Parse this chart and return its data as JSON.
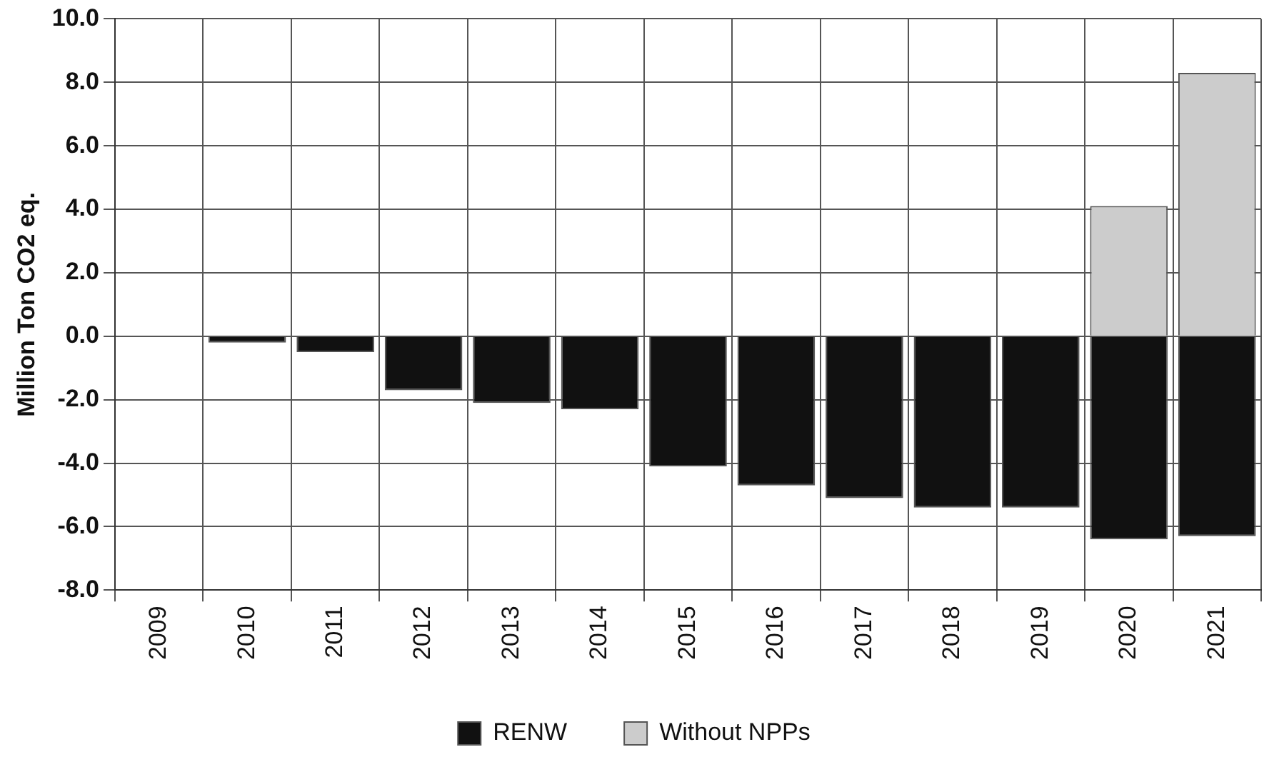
{
  "chart_data": {
    "type": "bar",
    "stacked": true,
    "categories": [
      "2009",
      "2010",
      "2011",
      "2012",
      "2013",
      "2014",
      "2015",
      "2016",
      "2017",
      "2018",
      "2019",
      "2020",
      "2021"
    ],
    "series": [
      {
        "name": "RENW",
        "color": "#111111",
        "values": [
          0,
          -0.2,
          -0.5,
          -1.7,
          -2.1,
          -2.3,
          -4.1,
          -4.7,
          -5.1,
          -5.4,
          -5.4,
          -6.4,
          -6.3
        ]
      },
      {
        "name": "Without NPPs",
        "color": "#cccccc",
        "values": [
          null,
          null,
          null,
          null,
          null,
          null,
          null,
          null,
          null,
          null,
          null,
          4.1,
          8.3
        ]
      }
    ],
    "ylabel": "Million Ton CO2 eq.",
    "ylim": [
      -8,
      10
    ],
    "yticks": [
      {
        "value": -8,
        "label": "-8.0"
      },
      {
        "value": -6,
        "label": "-6.0"
      },
      {
        "value": -4,
        "label": "-4.0"
      },
      {
        "value": -2,
        "label": "-2.0"
      },
      {
        "value": 0,
        "label": "0.0"
      },
      {
        "value": 2,
        "label": "2.0"
      },
      {
        "value": 4,
        "label": "4.0"
      },
      {
        "value": 6,
        "label": "6.0"
      },
      {
        "value": 8,
        "label": "8.0"
      },
      {
        "value": 10,
        "label": "10.0"
      }
    ],
    "grid": true,
    "legend": "bottom"
  }
}
